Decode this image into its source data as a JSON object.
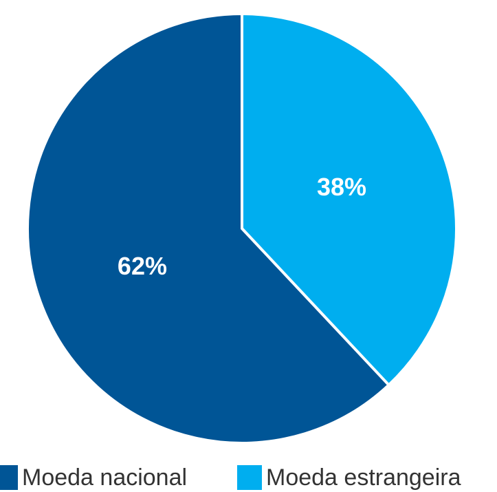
{
  "chart_data": {
    "type": "pie",
    "categories": [
      "Moeda nacional",
      "Moeda estrangeira"
    ],
    "values": [
      62,
      38
    ],
    "value_labels": [
      "62%",
      "38%"
    ],
    "colors": [
      "#005596",
      "#00aeef"
    ],
    "legend": "bottom"
  }
}
